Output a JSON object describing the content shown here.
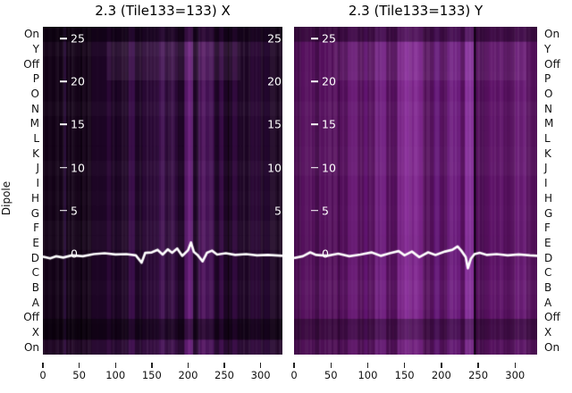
{
  "figure": {
    "background": "#ffffff",
    "ylabel": "Dipole",
    "text_color": "#111111"
  },
  "chart_data": [
    {
      "type": "heatmap+line",
      "title": "2.3 (Tile133=133) X",
      "row_labels": [
        "On",
        "Y",
        "Off",
        "P",
        "O",
        "N",
        "M",
        "L",
        "K",
        "J",
        "I",
        "H",
        "G",
        "F",
        "E",
        "D",
        "C",
        "B",
        "A",
        "Off",
        "X",
        "On"
      ],
      "row_label_side": "left",
      "x_ticks": [
        0,
        50,
        100,
        150,
        200,
        250,
        300
      ],
      "x_range": [
        0,
        330
      ],
      "inner_y_ticks": [
        25,
        20,
        15,
        10,
        5,
        0
      ],
      "inner_y_ticks_right": [
        25,
        20,
        15,
        10,
        5
      ],
      "colors": {
        "base": "#1e0626",
        "line": "#ffffff",
        "inner_tick_text": "#ffffff"
      },
      "vline": null,
      "streaks": [
        [
          0,
          67,
          "#140318"
        ],
        [
          29,
          32,
          "#250836"
        ],
        [
          52,
          54,
          "#0e0211"
        ],
        [
          88,
          94,
          "#2c0a37"
        ],
        [
          100,
          102,
          "#170520"
        ],
        [
          118,
          127,
          "#3a0f4a"
        ],
        [
          137,
          186,
          "#2c0a38"
        ],
        [
          160,
          168,
          "#411152"
        ],
        [
          176,
          182,
          "#380e46"
        ],
        [
          195,
          207,
          "#561968"
        ],
        [
          200,
          204,
          "#6f2381"
        ],
        [
          214,
          236,
          "#441254"
        ],
        [
          218,
          224,
          "#521760"
        ],
        [
          243,
          249,
          "#3a0e49"
        ],
        [
          255,
          256.5,
          "#10030f"
        ],
        [
          261,
          268,
          "#330c40"
        ],
        [
          286,
          300,
          "#2a0935"
        ],
        [
          305,
          312,
          "#240830"
        ],
        [
          320,
          330,
          "#1a0520"
        ]
      ],
      "bands": [
        {
          "r0": 0,
          "r1": 1,
          "color": "rgba(5,0,8,0.42)"
        },
        {
          "r0": 1,
          "r1": 3.6,
          "x0": 88,
          "x1": 272,
          "color": "rgba(240,205,245,0.07)"
        },
        {
          "r0": 19.6,
          "r1": 21,
          "color": "rgba(0,0,0,0.38)"
        },
        {
          "r0": 21,
          "r1": 22,
          "color": "rgba(160,70,180,0.10)"
        }
      ],
      "line_points": [
        [
          0,
          -0.35
        ],
        [
          10,
          -0.55
        ],
        [
          18,
          -0.3
        ],
        [
          28,
          -0.45
        ],
        [
          40,
          -0.2
        ],
        [
          55,
          -0.3
        ],
        [
          70,
          -0.05
        ],
        [
          85,
          0.05
        ],
        [
          100,
          -0.1
        ],
        [
          115,
          -0.05
        ],
        [
          128,
          -0.2
        ],
        [
          136,
          -1.05
        ],
        [
          141,
          0.1
        ],
        [
          150,
          0.15
        ],
        [
          158,
          0.45
        ],
        [
          165,
          -0.1
        ],
        [
          172,
          0.5
        ],
        [
          178,
          0.1
        ],
        [
          185,
          0.6
        ],
        [
          192,
          -0.25
        ],
        [
          200,
          0.4
        ],
        [
          204,
          1.3
        ],
        [
          208,
          0.2
        ],
        [
          213,
          -0.15
        ],
        [
          220,
          -0.9
        ],
        [
          226,
          0.1
        ],
        [
          233,
          0.35
        ],
        [
          240,
          -0.1
        ],
        [
          252,
          0.05
        ],
        [
          265,
          -0.15
        ],
        [
          280,
          -0.05
        ],
        [
          295,
          -0.2
        ],
        [
          310,
          -0.15
        ],
        [
          330,
          -0.25
        ]
      ]
    },
    {
      "type": "heatmap+line",
      "title": "2.3 (Tile133=133) Y",
      "row_labels": [
        "On",
        "Y",
        "Off",
        "P",
        "O",
        "N",
        "M",
        "L",
        "K",
        "J",
        "I",
        "H",
        "G",
        "F",
        "E",
        "D",
        "C",
        "B",
        "A",
        "Off",
        "X",
        "On"
      ],
      "row_label_side": "right",
      "x_ticks": [
        0,
        50,
        100,
        150,
        200,
        250,
        300
      ],
      "x_range": [
        0,
        330
      ],
      "inner_y_ticks": [
        25,
        20,
        15,
        10,
        5,
        0
      ],
      "inner_y_ticks_right": [],
      "colors": {
        "base": "#57115f",
        "line": "#ffffff",
        "inner_tick_text": "#ffffff"
      },
      "vline": 245.5,
      "streaks": [
        [
          0,
          10,
          "#4b0d53"
        ],
        [
          28,
          34,
          "#470e4e"
        ],
        [
          60,
          62,
          "#3f0a46"
        ],
        [
          73,
          86,
          "#6b1c77"
        ],
        [
          95,
          100,
          "#621672"
        ],
        [
          110,
          125,
          "#722082"
        ],
        [
          140,
          175,
          "#7b2489"
        ],
        [
          150,
          156,
          "#8a2f9b"
        ],
        [
          163,
          168,
          "#842a93"
        ],
        [
          190,
          198,
          "#641878"
        ],
        [
          208,
          226,
          "#6f1e80"
        ],
        [
          232,
          244,
          "#8c35a0"
        ],
        [
          252,
          258,
          "#4c0e54"
        ],
        [
          265,
          285,
          "#5f1469"
        ],
        [
          300,
          315,
          "#6b1c77"
        ],
        [
          322,
          333,
          "#4f0e57"
        ]
      ],
      "bands": [
        {
          "r0": 0,
          "r1": 1,
          "color": "rgba(5,0,8,0.35)"
        },
        {
          "r0": 1,
          "r1": 3.6,
          "x0": 55,
          "x1": 315,
          "color": "rgba(245,215,250,0.06)"
        },
        {
          "r0": 19.6,
          "r1": 21,
          "color": "rgba(0,0,0,0.30)"
        },
        {
          "r0": 21,
          "r1": 22,
          "color": "rgba(0,0,0,0.10)"
        }
      ],
      "line_points": [
        [
          0,
          -0.5
        ],
        [
          12,
          -0.3
        ],
        [
          22,
          0.15
        ],
        [
          30,
          -0.15
        ],
        [
          45,
          -0.25
        ],
        [
          60,
          0.0
        ],
        [
          75,
          -0.3
        ],
        [
          90,
          -0.1
        ],
        [
          105,
          0.15
        ],
        [
          118,
          -0.25
        ],
        [
          130,
          0.05
        ],
        [
          142,
          0.3
        ],
        [
          150,
          -0.2
        ],
        [
          160,
          0.25
        ],
        [
          170,
          -0.4
        ],
        [
          182,
          0.15
        ],
        [
          192,
          -0.15
        ],
        [
          205,
          0.25
        ],
        [
          215,
          0.45
        ],
        [
          222,
          0.85
        ],
        [
          227,
          0.35
        ],
        [
          233,
          -0.4
        ],
        [
          236,
          -1.7
        ],
        [
          240,
          -0.6
        ],
        [
          245,
          -0.05
        ],
        [
          252,
          0.1
        ],
        [
          262,
          -0.15
        ],
        [
          275,
          -0.05
        ],
        [
          290,
          -0.2
        ],
        [
          305,
          -0.1
        ],
        [
          320,
          -0.2
        ],
        [
          333,
          -0.25
        ]
      ]
    }
  ]
}
